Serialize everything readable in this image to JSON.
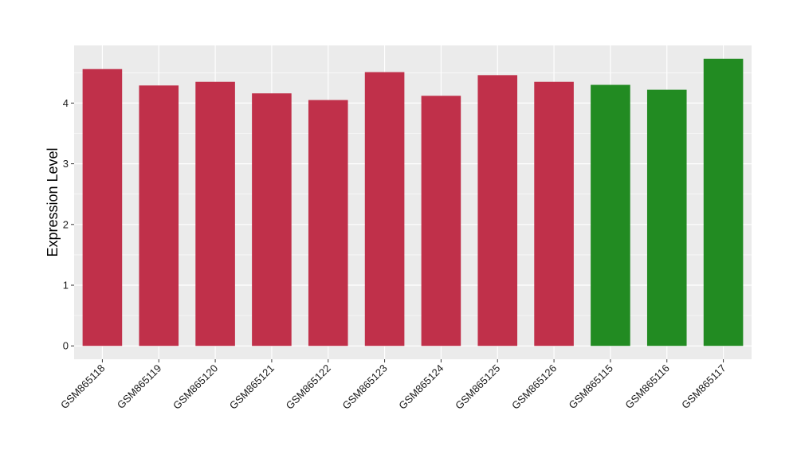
{
  "chart_data": {
    "type": "bar",
    "title": "",
    "xlabel": "",
    "ylabel": "Expression Level",
    "ylim": [
      -0.22,
      4.95
    ],
    "yticks": [
      0,
      1,
      2,
      3,
      4
    ],
    "grid": true,
    "legend": "none",
    "categories": [
      "GSM865118",
      "GSM865119",
      "GSM865120",
      "GSM865121",
      "GSM865122",
      "GSM865123",
      "GSM865124",
      "GSM865125",
      "GSM865126",
      "GSM865115",
      "GSM865116",
      "GSM865117"
    ],
    "values": [
      4.56,
      4.29,
      4.35,
      4.16,
      4.05,
      4.51,
      4.12,
      4.46,
      4.35,
      4.3,
      4.22,
      4.73
    ],
    "bar_colors": [
      "#c0304a",
      "#c0304a",
      "#c0304a",
      "#c0304a",
      "#c0304a",
      "#c0304a",
      "#c0304a",
      "#c0304a",
      "#c0304a",
      "#228b22",
      "#228b22",
      "#228b22"
    ],
    "panel_background": "#ebebeb",
    "grid_color": "#ffffff"
  }
}
